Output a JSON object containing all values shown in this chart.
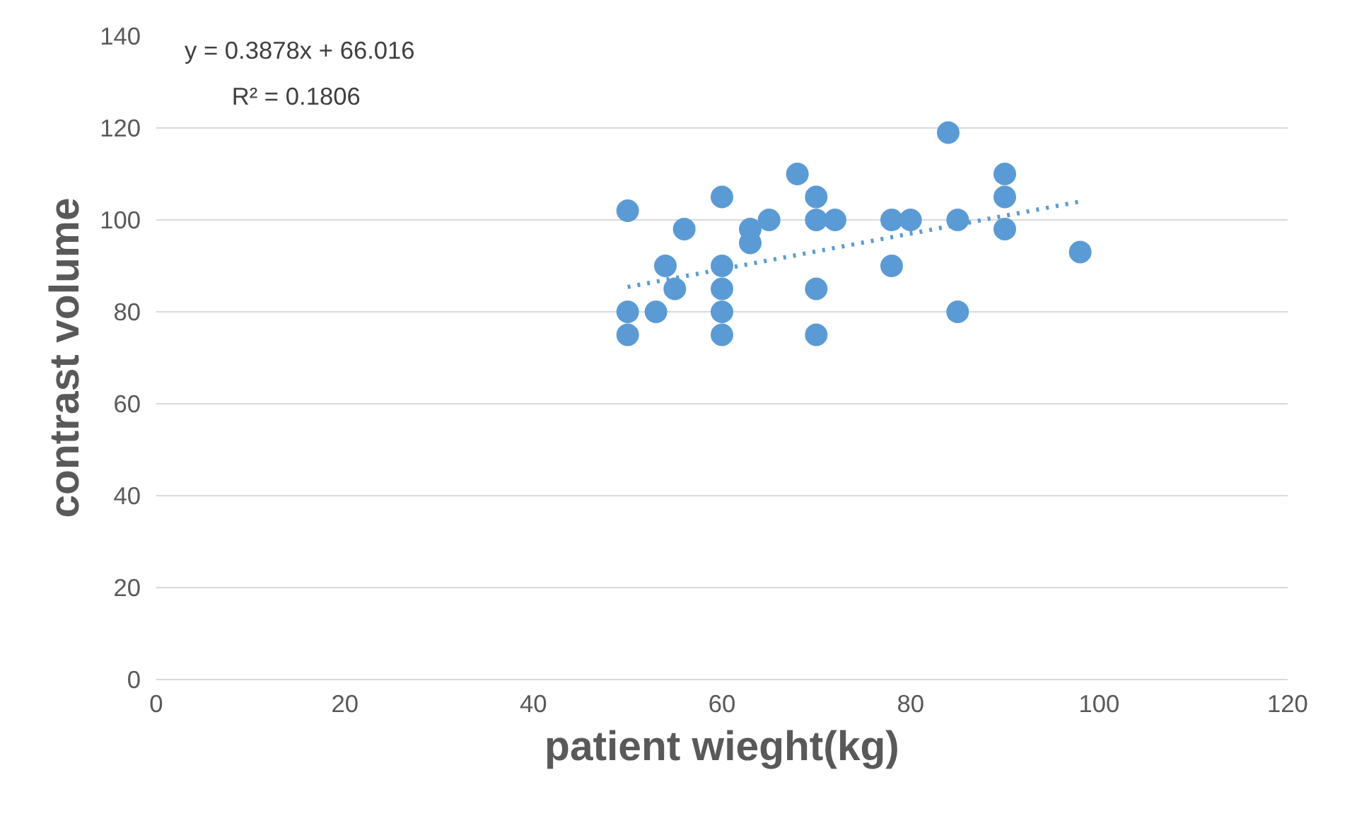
{
  "chart_data": {
    "type": "scatter",
    "xlabel": "patient wieght(kg)",
    "ylabel": "contrast volume",
    "annotations": [
      "y = 0.3878x + 66.016",
      "R² = 0.1806"
    ],
    "xlim": [
      0,
      120
    ],
    "ylim": [
      0,
      140
    ],
    "xticks": [
      0,
      20,
      40,
      60,
      80,
      100,
      120
    ],
    "yticks": [
      0,
      20,
      40,
      60,
      80,
      100,
      120,
      140
    ],
    "grid": "y",
    "series": [
      {
        "marker": "circle",
        "color": "#5b9bd5",
        "x": [
          50,
          50,
          50,
          53,
          54,
          55,
          56,
          60,
          60,
          60,
          60,
          60,
          63,
          63,
          65,
          68,
          70,
          70,
          70,
          70,
          72,
          78,
          78,
          80,
          84,
          85,
          85,
          90,
          90,
          90,
          98
        ],
        "values": [
          102,
          80,
          75,
          80,
          90,
          85,
          98,
          105,
          90,
          85,
          80,
          75,
          98,
          95,
          100,
          110,
          105,
          100,
          85,
          75,
          100,
          100,
          90,
          100,
          119,
          100,
          80,
          110,
          105,
          98,
          93
        ]
      },
      {
        "type": "line",
        "color": "#5b9bd5",
        "line_style": "dotted",
        "x": [
          50,
          98
        ],
        "values": [
          85.4,
          104.0
        ]
      }
    ]
  }
}
